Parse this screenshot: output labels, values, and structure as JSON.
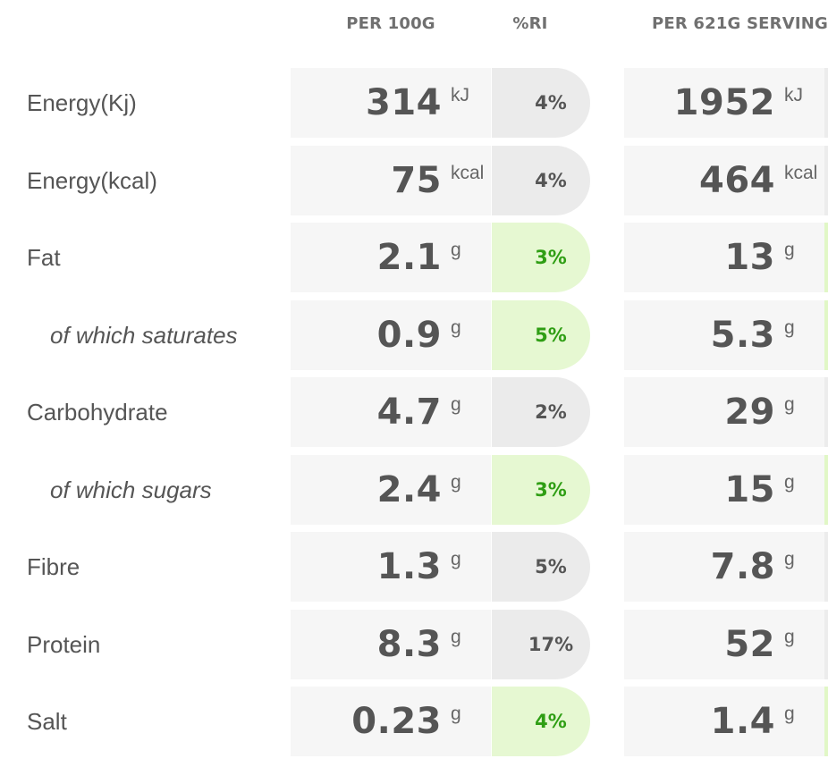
{
  "headers": {
    "per100": "PER 100G",
    "ri": "%RI",
    "serving": "PER 621G SERVING"
  },
  "rows": [
    {
      "label": "Energy(Kj)",
      "sub": false,
      "per100": "314",
      "unit": "kJ",
      "ri": "4%",
      "ri_highlight": false,
      "serving": "1952"
    },
    {
      "label": "Energy(kcal)",
      "sub": false,
      "per100": "75",
      "unit": "kcal",
      "ri": "4%",
      "ri_highlight": false,
      "serving": "464"
    },
    {
      "label": "Fat",
      "sub": false,
      "per100": "2.1",
      "unit": "g",
      "ri": "3%",
      "ri_highlight": true,
      "serving": "13"
    },
    {
      "label": "of which saturates",
      "sub": true,
      "per100": "0.9",
      "unit": "g",
      "ri": "5%",
      "ri_highlight": true,
      "serving": "5.3"
    },
    {
      "label": "Carbohydrate",
      "sub": false,
      "per100": "4.7",
      "unit": "g",
      "ri": "2%",
      "ri_highlight": false,
      "serving": "29"
    },
    {
      "label": "of which sugars",
      "sub": true,
      "per100": "2.4",
      "unit": "g",
      "ri": "3%",
      "ri_highlight": true,
      "serving": "15"
    },
    {
      "label": "Fibre",
      "sub": false,
      "per100": "1.3",
      "unit": "g",
      "ri": "5%",
      "ri_highlight": false,
      "serving": "7.8"
    },
    {
      "label": "Protein",
      "sub": false,
      "per100": "8.3",
      "unit": "g",
      "ri": "17%",
      "ri_highlight": false,
      "serving": "52"
    },
    {
      "label": "Salt",
      "sub": false,
      "per100": "0.23",
      "unit": "g",
      "ri": "4%",
      "ri_highlight": true,
      "serving": "1.4"
    }
  ],
  "colors": {
    "ri_normal_bg": "#ebebeb",
    "ri_highlight_bg": "#e6f8d2",
    "ri_highlight_text": "#2f9e14",
    "cell_bg": "#f6f6f6"
  }
}
